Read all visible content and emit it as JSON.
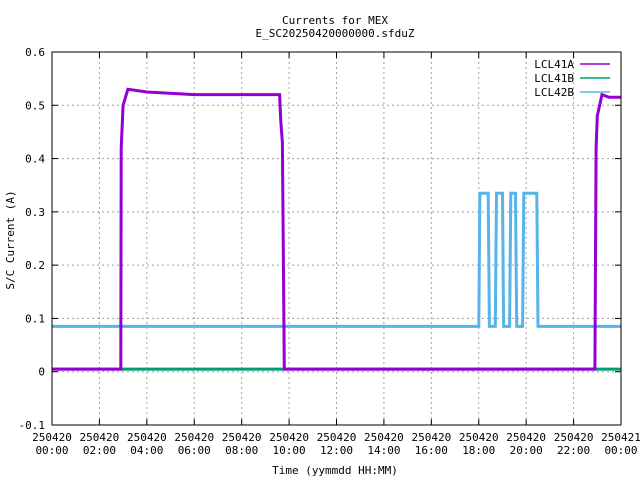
{
  "chart_data": {
    "type": "line",
    "title": "Currents for MEX",
    "subtitle": "E_SC20250420000000.sfduZ",
    "xlabel": "Time (yymmdd HH:MM)",
    "ylabel": "S/C Current (A)",
    "xlim": [
      0,
      24
    ],
    "ylim": [
      -0.1,
      0.6
    ],
    "grid": true,
    "legend_position": "top-right",
    "yticks": [
      {
        "value": -0.1,
        "label": "-0.1"
      },
      {
        "value": 0,
        "label": "0"
      },
      {
        "value": 0.1,
        "label": "0.1"
      },
      {
        "value": 0.2,
        "label": "0.2"
      },
      {
        "value": 0.3,
        "label": "0.3"
      },
      {
        "value": 0.4,
        "label": "0.4"
      },
      {
        "value": 0.5,
        "label": "0.5"
      },
      {
        "value": 0.6,
        "label": "0.6"
      }
    ],
    "xticks": [
      {
        "value": 0,
        "date": "250420",
        "time": "00:00"
      },
      {
        "value": 2,
        "date": "250420",
        "time": "02:00"
      },
      {
        "value": 4,
        "date": "250420",
        "time": "04:00"
      },
      {
        "value": 6,
        "date": "250420",
        "time": "06:00"
      },
      {
        "value": 8,
        "date": "250420",
        "time": "08:00"
      },
      {
        "value": 10,
        "date": "250420",
        "time": "10:00"
      },
      {
        "value": 12,
        "date": "250420",
        "time": "12:00"
      },
      {
        "value": 14,
        "date": "250420",
        "time": "14:00"
      },
      {
        "value": 16,
        "date": "250420",
        "time": "16:00"
      },
      {
        "value": 18,
        "date": "250420",
        "time": "18:00"
      },
      {
        "value": 20,
        "date": "250420",
        "time": "20:00"
      },
      {
        "value": 22,
        "date": "250420",
        "time": "22:00"
      },
      {
        "value": 24,
        "date": "250421",
        "time": "00:00"
      }
    ],
    "series": [
      {
        "name": "LCL41A",
        "color": "#9400d3",
        "x": [
          0,
          2.9,
          2.92,
          3.0,
          3.2,
          4.0,
          6.0,
          8.0,
          9.6,
          9.65,
          9.72,
          9.8,
          9.85,
          22.0,
          22.9,
          22.95,
          23.0,
          23.2,
          23.5,
          24.0
        ],
        "y": [
          0.005,
          0.005,
          0.42,
          0.5,
          0.53,
          0.525,
          0.52,
          0.52,
          0.52,
          0.47,
          0.43,
          0.005,
          0.005,
          0.005,
          0.005,
          0.42,
          0.48,
          0.52,
          0.515,
          0.515
        ]
      },
      {
        "name": "LCL41B",
        "color": "#009e73",
        "x": [
          0,
          24
        ],
        "y": [
          0.005,
          0.005
        ]
      },
      {
        "name": "LCL42B",
        "color": "#56b4e9",
        "x": [
          0,
          18.0,
          18.05,
          18.4,
          18.45,
          18.7,
          18.75,
          19.0,
          19.05,
          19.3,
          19.35,
          19.55,
          19.6,
          19.85,
          19.9,
          20.1,
          20.15,
          20.45,
          20.5,
          24.0
        ],
        "y": [
          0.085,
          0.085,
          0.335,
          0.335,
          0.085,
          0.085,
          0.335,
          0.335,
          0.085,
          0.085,
          0.335,
          0.335,
          0.085,
          0.085,
          0.335,
          0.335,
          0.335,
          0.335,
          0.085,
          0.085
        ]
      }
    ]
  }
}
